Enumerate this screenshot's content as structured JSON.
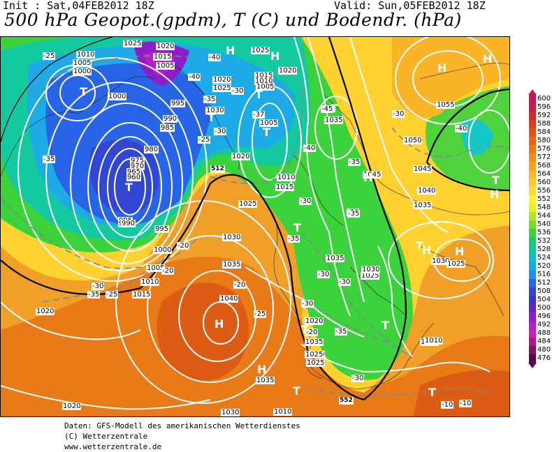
{
  "header": {
    "init": "Init : Sat,04FEB2012 18Z",
    "valid": "Valid: Sun,05FEB2012 18Z",
    "title": "500 hPa Geopot.(gpdm), T (C) und Bodendr. (hPa)"
  },
  "legend": {
    "levels": [
      "600",
      "596",
      "592",
      "588",
      "584",
      "580",
      "576",
      "572",
      "568",
      "564",
      "560",
      "556",
      "552",
      "548",
      "544",
      "540",
      "536",
      "532",
      "528",
      "524",
      "520",
      "516",
      "512",
      "508",
      "504",
      "500",
      "496",
      "492",
      "488",
      "484",
      "480",
      "476"
    ],
    "colors": [
      "#c8145a",
      "#c81e46",
      "#d22832",
      "#dc3c1e",
      "#e65014",
      "#ec640f",
      "#f07814",
      "#f58c1e",
      "#fa9f23",
      "#ffb428",
      "#ffc82d",
      "#ffdc32",
      "#ffee32",
      "#e6f01e",
      "#b4e61e",
      "#78dc28",
      "#3cd23c",
      "#1ec864",
      "#14c896",
      "#14bec8",
      "#14aae6",
      "#1e8cf0",
      "#2864e6",
      "#3246d2",
      "#3c32c8",
      "#5a28c8",
      "#8c1ec8",
      "#b41ec8",
      "#d21eb4",
      "#b4148c",
      "#821464",
      "#5a0a46"
    ],
    "arrow_colors": {
      "top": "#c8145a",
      "bottom": "#5a0a46"
    }
  },
  "map_labels": {
    "pressure": [
      "1025",
      "1020",
      "1010",
      "1005",
      "1000",
      "1015",
      "1005",
      "1020",
      "1025",
      "1025",
      "1020",
      "1015",
      "1010",
      "1005",
      "1000",
      "995",
      "990",
      "985",
      "1030",
      "980",
      "975",
      "970",
      "965",
      "960",
      "1005",
      "1020",
      "1010",
      "1015",
      "1025",
      "1035",
      "1045",
      "1040",
      "1035",
      "1055",
      "1050",
      "1045",
      "1035",
      "1020",
      "1025",
      "1030",
      "1030",
      "1035",
      "1040",
      "1030",
      "1025",
      "1000",
      "995",
      "1005",
      "1010",
      "1015",
      "1020",
      "1015",
      "1010",
      "1020",
      "1025",
      "1035",
      "1030",
      "1020",
      "1010",
      "995",
      "985",
      "990",
      "1025",
      "1035"
    ],
    "temperature": [
      "-25",
      "-40",
      "-35",
      "-40",
      "-30",
      "-30",
      "-25",
      "-35",
      "-37",
      "-45",
      "-40",
      "-35",
      "-30",
      "-30",
      "-35",
      "-30",
      "-30",
      "-35",
      "-40",
      "-20",
      "-20",
      "-20",
      "-25",
      "-30",
      "-30",
      "-20",
      "-30",
      "-35",
      "-10",
      "-10",
      "-25",
      "-30",
      "-35"
    ],
    "centers": [
      "T",
      "T",
      "T",
      "T",
      "T",
      "T",
      "T",
      "T",
      "T",
      "T",
      "T",
      "T",
      "T",
      "H",
      "H",
      "H",
      "H",
      "H",
      "H",
      "H",
      "H",
      "H",
      "H"
    ],
    "contour_tags": [
      "512",
      "552"
    ]
  },
  "footer": {
    "line1": "Daten: GFS-Modell des amerikanischen Wetterdienstes",
    "line2": "(C) Wetterzentrale",
    "line3": "www.wetterzentrale.de"
  }
}
